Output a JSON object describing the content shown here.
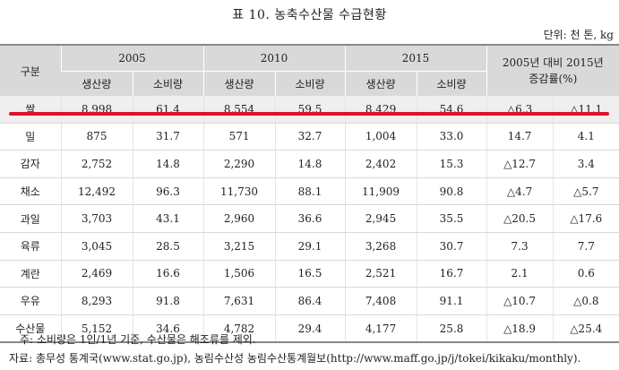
{
  "title": "표 10.  농축수산물 수급현황",
  "unit": "단위: 천 톤, kg",
  "table": {
    "corner_label": "구분",
    "years": [
      "2005",
      "2010",
      "2015"
    ],
    "change_header": "2005년 대비 2015년 증감률(%)",
    "sub_headers": [
      "생산량",
      "소비량",
      "생산량",
      "소비량",
      "생산량",
      "소비량"
    ],
    "rows": [
      {
        "item": "쌀",
        "values": [
          "8,998",
          "61.4",
          "8,554",
          "59.5",
          "8,429",
          "54.6",
          "△6.3",
          "△11.1"
        ]
      },
      {
        "item": "밀",
        "values": [
          "875",
          "31.7",
          "571",
          "32.7",
          "1,004",
          "33.0",
          "14.7",
          "4.1"
        ]
      },
      {
        "item": "감자",
        "values": [
          "2,752",
          "14.8",
          "2,290",
          "14.8",
          "2,402",
          "15.3",
          "△12.7",
          "3.4"
        ]
      },
      {
        "item": "채소",
        "values": [
          "12,492",
          "96.3",
          "11,730",
          "88.1",
          "11,909",
          "90.8",
          "△4.7",
          "△5.7"
        ]
      },
      {
        "item": "과일",
        "values": [
          "3,703",
          "43.1",
          "2,960",
          "36.6",
          "2,945",
          "35.5",
          "△20.5",
          "△17.6"
        ]
      },
      {
        "item": "육류",
        "values": [
          "3,045",
          "28.5",
          "3,215",
          "29.1",
          "3,268",
          "30.7",
          "7.3",
          "7.7"
        ]
      },
      {
        "item": "계란",
        "values": [
          "2,469",
          "16.6",
          "1,506",
          "16.5",
          "2,521",
          "16.7",
          "2.1",
          "0.6"
        ]
      },
      {
        "item": "우유",
        "values": [
          "8,293",
          "91.8",
          "7,631",
          "86.4",
          "7,408",
          "91.1",
          "△10.7",
          "△0.8"
        ]
      },
      {
        "item": "수산물",
        "values": [
          "5,152",
          "34.6",
          "4,782",
          "29.4",
          "4,177",
          "25.8",
          "△18.9",
          "△25.4"
        ]
      }
    ]
  },
  "notes": {
    "note": "주: 소비량은 1인/1년 기준, 수산물은 해조류를 제외.",
    "source": "자료: 총무성 통계국(www.stat.go.jp),  농림수산성 농림수산통계월보(http://www.maff.go.jp/j/tokei/kikaku/monthly)."
  },
  "colors": {
    "highlight_underline": "#e0102a",
    "header_bg": "#d9d9d9"
  }
}
